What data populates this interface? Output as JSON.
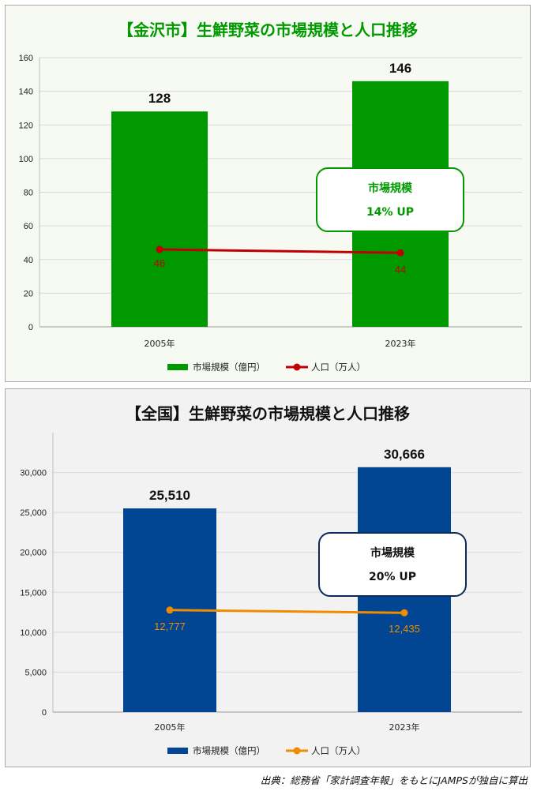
{
  "source_note": "出典：総務省「家計調査年報」をもとにJAMPSが独自に算出",
  "chart_data": [
    {
      "type": "bar",
      "title": "【金沢市】生鮮野菜の市場規模と人口推移",
      "categories": [
        "2005年",
        "2023年"
      ],
      "ylim": [
        0,
        160
      ],
      "yticks": [
        0,
        20,
        40,
        60,
        80,
        100,
        120,
        140,
        160
      ],
      "ytick_labels": [
        "0",
        "20",
        "40",
        "60",
        "80",
        "100",
        "120",
        "140",
        "160"
      ],
      "grid": true,
      "legend_position": "bottom",
      "series": [
        {
          "name": "市場規模（億円）",
          "kind": "bar",
          "color": "#009900",
          "values": [
            128,
            146
          ],
          "labels": [
            "128",
            "146"
          ]
        },
        {
          "name": "人口（万人）",
          "kind": "line",
          "color": "#c00000",
          "values": [
            46,
            44
          ],
          "labels": [
            "46",
            "44"
          ]
        }
      ],
      "annotation": {
        "line1": "市場規模",
        "line2": "14% UP",
        "color": "#009900"
      },
      "colors": {
        "title": "#009900",
        "background": "#f7faf3"
      }
    },
    {
      "type": "bar",
      "title": "【全国】生鮮野菜の市場規模と人口推移",
      "categories": [
        "2005年",
        "2023年"
      ],
      "ylim": [
        0,
        35000
      ],
      "yticks": [
        0,
        5000,
        10000,
        15000,
        20000,
        25000,
        30000
      ],
      "ytick_labels": [
        "0",
        "5,000",
        "10,000",
        "15,000",
        "20,000",
        "25,000",
        "30,000"
      ],
      "grid": true,
      "legend_position": "bottom",
      "series": [
        {
          "name": "市場規模（億円）",
          "kind": "bar",
          "color": "#024693",
          "values": [
            25510,
            30666
          ],
          "labels": [
            "25,510",
            "30,666"
          ]
        },
        {
          "name": "人口（万人）",
          "kind": "line",
          "color": "#ef8c00",
          "values": [
            12777,
            12435
          ],
          "labels": [
            "12,777",
            "12,435"
          ]
        }
      ],
      "annotation": {
        "line1": "市場規模",
        "line2": "20% UP",
        "color": "#0b2a5a"
      },
      "colors": {
        "title": "#111111",
        "background": "#f2f2f2"
      }
    }
  ]
}
